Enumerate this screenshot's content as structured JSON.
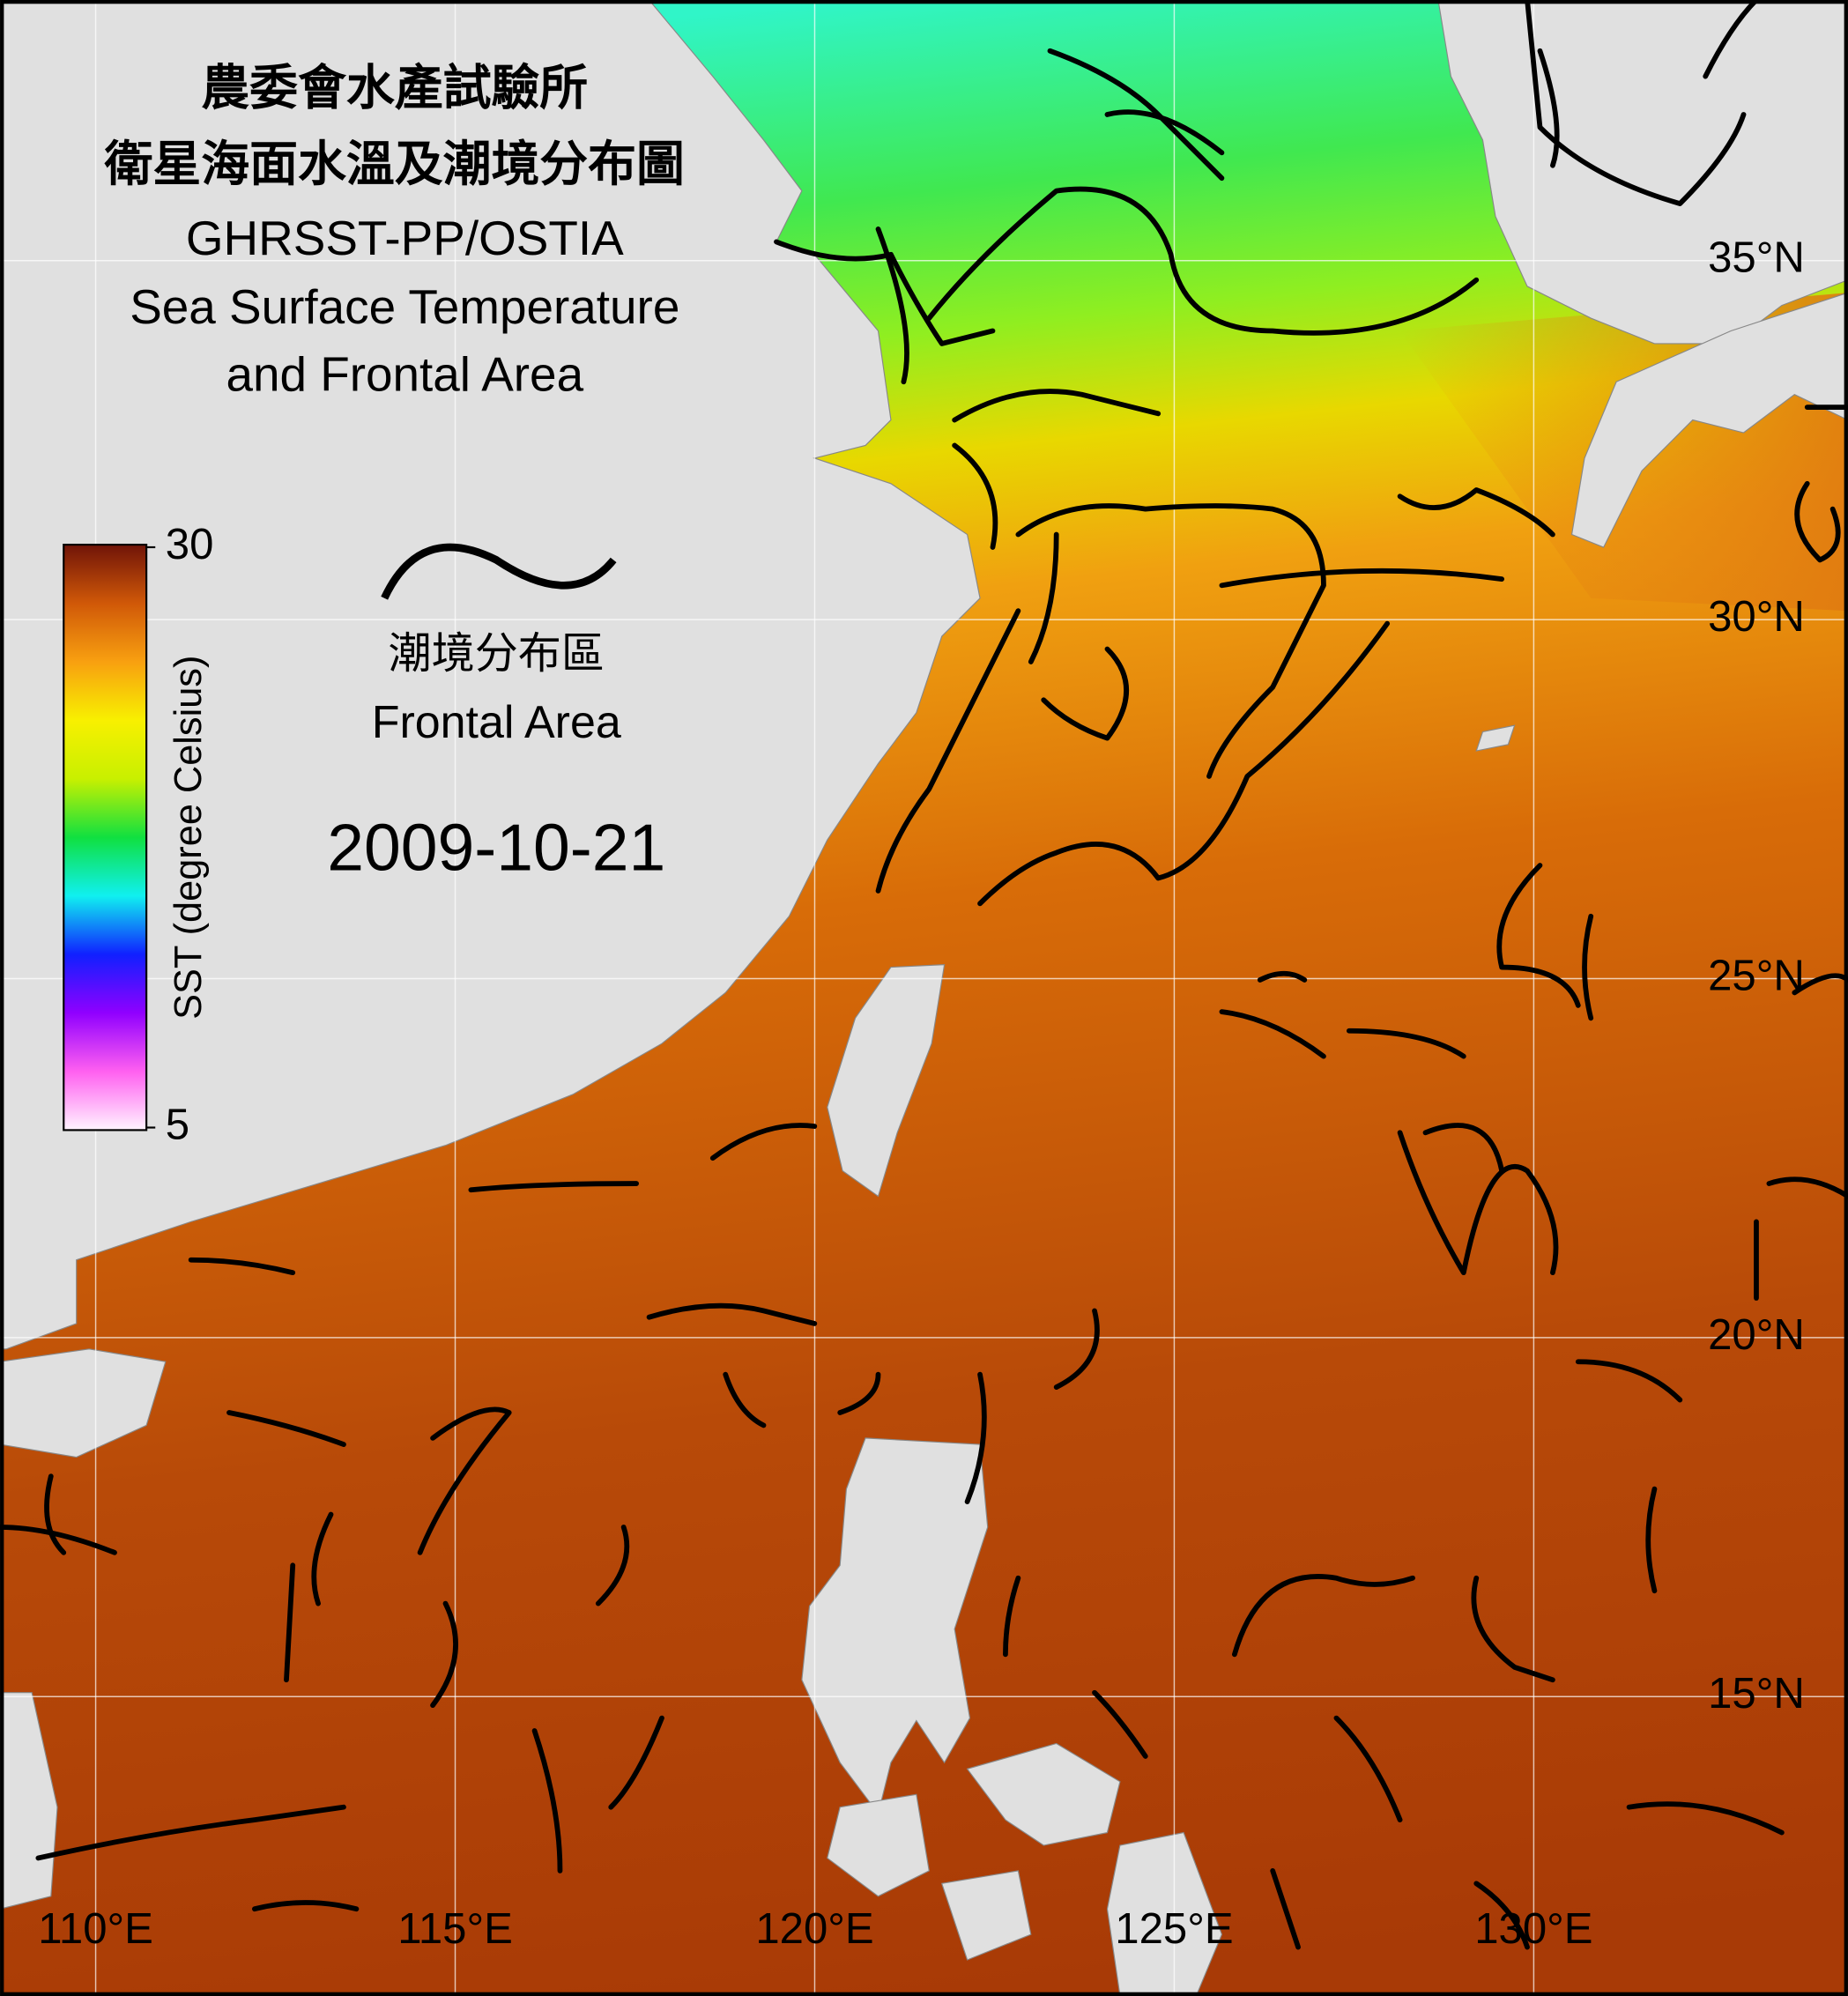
{
  "header": {
    "title_lines": [
      "農委會水產試驗所",
      "衛星海面水溫及潮境分布圖",
      "GHRSST-PP/OSTIA",
      "Sea Surface Temperature",
      "and Frontal Area"
    ],
    "date": "2009-10-21"
  },
  "legend": {
    "front_label_zh": "潮境分布區",
    "front_label_en": "Frontal Area"
  },
  "colorbar": {
    "label": "SST (degree Celsius)",
    "ylim": [
      5,
      30
    ],
    "yticks": [
      5,
      30
    ],
    "colors": [
      "#fff4ff",
      "#ff60f0",
      "#9000ff",
      "#1020ff",
      "#10f0f0",
      "#10e040",
      "#c8f000",
      "#f8f000",
      "#f8a010",
      "#d05808",
      "#701408"
    ]
  },
  "map": {
    "xlim": [
      108.67,
      134.37
    ],
    "ylim": [
      10.83,
      38.63
    ],
    "grid": true,
    "xticks": [
      {
        "value": 110,
        "label": "110°E"
      },
      {
        "value": 115,
        "label": "115°E"
      },
      {
        "value": 120,
        "label": "120°E"
      },
      {
        "value": 125,
        "label": "125°E"
      },
      {
        "value": 130,
        "label": "130°E"
      }
    ],
    "yticks": [
      {
        "value": 15,
        "label": "15°N"
      },
      {
        "value": 20,
        "label": "20°N"
      },
      {
        "value": 25,
        "label": "25°N"
      },
      {
        "value": 30,
        "label": "30°N"
      },
      {
        "value": 35,
        "label": "35°N"
      }
    ]
  }
}
